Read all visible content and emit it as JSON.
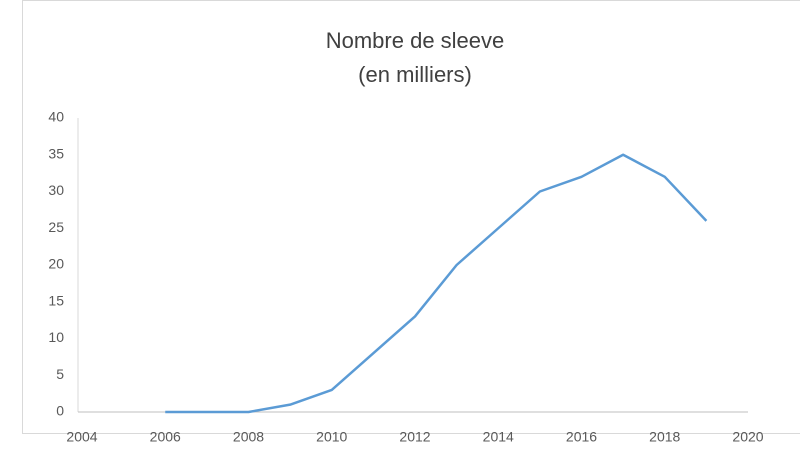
{
  "chart_data": {
    "type": "line",
    "title": "Nombre de sleeve",
    "subtitle": "(en milliers)",
    "x": [
      2006,
      2007,
      2008,
      2009,
      2010,
      2011,
      2012,
      2013,
      2014,
      2015,
      2016,
      2017,
      2018,
      2019
    ],
    "series": [
      {
        "name": "Nombre de sleeve",
        "color": "#5b9bd5",
        "values": [
          0,
          0,
          0,
          1,
          3,
          8,
          13,
          20,
          25,
          30,
          32,
          35,
          32,
          26
        ]
      }
    ],
    "xlim": [
      2004,
      2020
    ],
    "xticks": [
      2004,
      2006,
      2008,
      2010,
      2012,
      2014,
      2016,
      2018,
      2020
    ],
    "ylim": [
      0,
      40
    ],
    "yticks": [
      0,
      5,
      10,
      15,
      20,
      25,
      30,
      35,
      40
    ],
    "grid": false
  }
}
